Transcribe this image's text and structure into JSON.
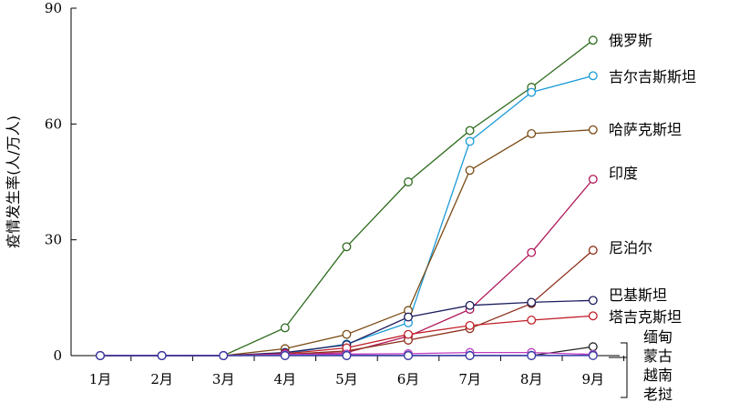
{
  "chart_data": {
    "type": "line",
    "title": "",
    "xlabel": "",
    "ylabel": "疫情发生率(人/万人)",
    "categories": [
      "1月",
      "2月",
      "3月",
      "4月",
      "5月",
      "6月",
      "7月",
      "8月",
      "9月"
    ],
    "ylim": [
      0,
      90
    ],
    "yticks": [
      0,
      30,
      60,
      90
    ],
    "grid": false,
    "series": [
      {
        "name": "俄罗斯",
        "color": "#2e6b1e",
        "values": [
          0,
          0,
          0,
          7.2,
          28.2,
          45.0,
          58.3,
          69.5,
          81.7
        ]
      },
      {
        "name": "吉尔吉斯斯坦",
        "color": "#1a9ad6",
        "values": [
          0,
          0,
          0,
          0.5,
          3.0,
          8.5,
          55.5,
          68.2,
          72.5
        ]
      },
      {
        "name": "哈萨克斯坦",
        "color": "#7a4a14",
        "values": [
          0,
          0,
          0,
          1.8,
          5.5,
          11.7,
          48.0,
          57.5,
          58.5
        ]
      },
      {
        "name": "印度",
        "color": "#b0185a",
        "values": [
          0,
          0,
          0,
          0.2,
          0.8,
          5.0,
          12.0,
          26.7,
          45.7
        ]
      },
      {
        "name": "尼泊尔",
        "color": "#8b2e1a",
        "values": [
          0,
          0,
          0,
          0.3,
          1.2,
          4.0,
          7.0,
          13.5,
          27.3
        ]
      },
      {
        "name": "巴基斯坦",
        "color": "#1c1c5e",
        "values": [
          0,
          0,
          0,
          0.8,
          2.8,
          10.0,
          13.0,
          13.8,
          14.3
        ]
      },
      {
        "name": "塔吉克斯坦",
        "color": "#c0202a",
        "values": [
          0,
          0,
          0,
          0.5,
          2.0,
          5.5,
          7.8,
          9.2,
          10.3
        ]
      },
      {
        "name": "缅甸",
        "color": "#222222",
        "values": [
          0,
          0,
          0,
          0,
          0,
          0,
          0,
          0,
          2.3
        ]
      },
      {
        "name": "蒙古",
        "color": "#c03ac0",
        "values": [
          0,
          0,
          0,
          0.3,
          0.4,
          0.5,
          0.8,
          0.8,
          0.3
        ]
      },
      {
        "name": "越南",
        "color": "#4a6ab8",
        "values": [
          0,
          0,
          0,
          0.1,
          0.1,
          0.1,
          0.1,
          0.1,
          0.1
        ]
      },
      {
        "name": "老挝",
        "color": "#3a3aa8",
        "values": [
          0,
          0,
          0,
          0,
          0,
          0,
          0,
          0,
          0
        ]
      }
    ],
    "bracket_labels": [
      "缅甸",
      "蒙古",
      "越南",
      "老挝"
    ]
  }
}
